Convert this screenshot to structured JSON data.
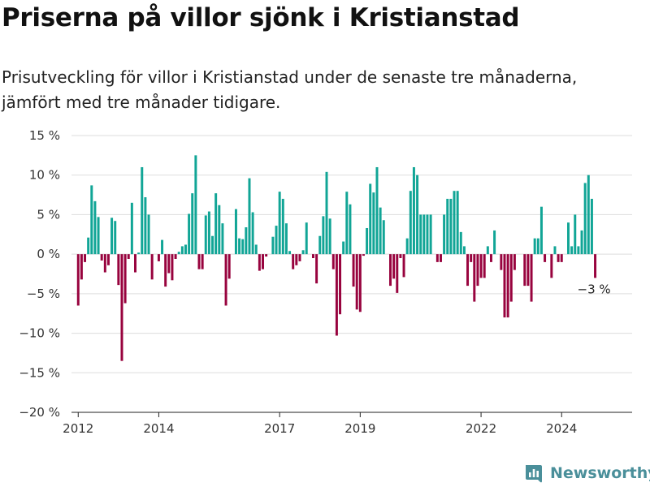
{
  "chart_data": {
    "type": "bar",
    "title": "Priserna på villor sjönk i Kristianstad",
    "subtitle": "Prisutveckling för villor i Kristianstad under de senaste tre månaderna, jämfört med tre månader tidigare.",
    "xlabel": "",
    "ylabel": "",
    "ylim": [
      -20,
      15
    ],
    "y_ticks": [
      15,
      10,
      5,
      0,
      -5,
      -10,
      -15,
      -20
    ],
    "y_tick_labels": [
      "15 %",
      "10 %",
      "5 %",
      "0 %",
      "−5 %",
      "−10 %",
      "−15 %",
      "−20 %"
    ],
    "x_range": [
      "2011-11",
      "2025-10"
    ],
    "x_ticks": [
      "2012-01",
      "2014-01",
      "2017-01",
      "2019-01",
      "2022-01",
      "2024-01"
    ],
    "x_tick_labels": [
      "2012",
      "2014",
      "2017",
      "2019",
      "2022",
      "2024"
    ],
    "start_month": "2012-01",
    "values": [
      -6.5,
      -3.2,
      -1.0,
      2.1,
      8.7,
      6.7,
      4.7,
      -0.8,
      -2.3,
      -1.4,
      4.6,
      4.2,
      -3.9,
      -13.5,
      -6.2,
      -0.6,
      6.5,
      -2.3,
      0.2,
      11.0,
      7.2,
      5.0,
      -3.2,
      0.0,
      -0.9,
      1.8,
      -4.1,
      -2.4,
      -3.3,
      -0.6,
      0.3,
      1.0,
      1.2,
      5.1,
      7.7,
      12.5,
      -1.9,
      -1.9,
      4.9,
      5.4,
      2.3,
      7.7,
      6.2,
      3.9,
      -6.5,
      -3.1,
      0.0,
      5.7,
      2.0,
      1.9,
      3.4,
      9.6,
      5.3,
      1.2,
      -2.1,
      -1.9,
      -0.3,
      0.0,
      2.2,
      3.6,
      7.9,
      7.0,
      3.9,
      0.4,
      -1.9,
      -1.4,
      -0.9,
      0.5,
      4.0,
      0.0,
      -0.5,
      -3.7,
      2.3,
      4.8,
      10.4,
      4.5,
      -1.9,
      -10.3,
      -7.6,
      1.6,
      7.9,
      6.3,
      -4.1,
      -7.0,
      -7.3,
      -0.2,
      3.3,
      8.9,
      7.8,
      11.0,
      5.9,
      4.3,
      0.0,
      -4.0,
      -3.1,
      -4.9,
      -0.5,
      -2.9,
      2.0,
      8.0,
      11.0,
      10.0,
      5.0,
      5.0,
      5.0,
      5.0,
      0.0,
      -1.0,
      -1.0,
      5.0,
      7.0,
      7.0,
      8.0,
      8.0,
      2.8,
      1.0,
      -4.0,
      -1.0,
      -6.0,
      -4.0,
      -3.0,
      -3.0,
      1.0,
      -1.0,
      3.0,
      0.0,
      -2.0,
      -8.0,
      -8.0,
      -6.0,
      -2.0,
      0.0,
      0.0,
      -4.0,
      -4.0,
      -6.0,
      2.0,
      2.0,
      6.0,
      -1.0,
      0.0,
      -3.0,
      1.0,
      -1.0,
      -1.0,
      0.0,
      4.0,
      1.0,
      5.0,
      1.0,
      3.0,
      9.0,
      10.0,
      7.0,
      -3.0
    ],
    "last_label": "−3 %",
    "colors": {
      "positive": "#11a596",
      "negative": "#98033e"
    },
    "grid": true,
    "legend": "none"
  },
  "brand": {
    "name": "Newsworthy",
    "logo_icon": "newsworthy-logo-icon",
    "color": "#4a8f9a"
  }
}
